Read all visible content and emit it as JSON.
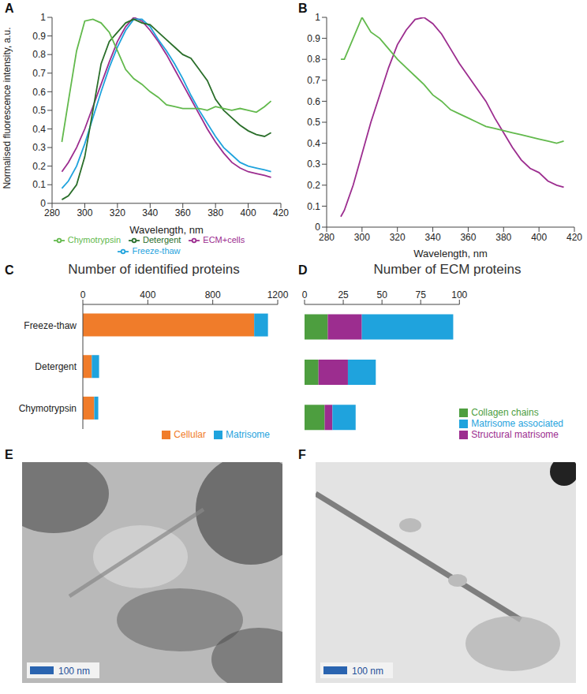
{
  "chart_data": [
    {
      "panel": "A",
      "type": "line",
      "x_label": "Wavelength, nm",
      "y_label": "Normalised fluorescence intensity, a.u.",
      "x": [
        286,
        290,
        295,
        300,
        305,
        310,
        315,
        320,
        325,
        330,
        335,
        340,
        345,
        350,
        355,
        360,
        365,
        370,
        375,
        380,
        385,
        390,
        395,
        400,
        405,
        410,
        414
      ],
      "series": [
        {
          "name": "ECM+cells",
          "color": "#9c2d8f",
          "values": [
            0.17,
            0.22,
            0.3,
            0.4,
            0.52,
            0.64,
            0.76,
            0.87,
            0.95,
            1.0,
            0.98,
            0.93,
            0.87,
            0.8,
            0.72,
            0.64,
            0.56,
            0.48,
            0.4,
            0.33,
            0.27,
            0.22,
            0.19,
            0.17,
            0.16,
            0.15,
            0.14
          ]
        },
        {
          "name": "Freeze-thaw",
          "color": "#1fa3dd",
          "values": [
            0.08,
            0.12,
            0.2,
            0.32,
            0.46,
            0.6,
            0.73,
            0.84,
            0.93,
            0.99,
            0.99,
            0.95,
            0.88,
            0.82,
            0.75,
            0.67,
            0.58,
            0.5,
            0.43,
            0.36,
            0.3,
            0.26,
            0.22,
            0.2,
            0.19,
            0.18,
            0.17
          ]
        },
        {
          "name": "Detergent",
          "color": "#2a6e2a",
          "values": [
            0.02,
            0.04,
            0.1,
            0.25,
            0.5,
            0.75,
            0.87,
            0.92,
            0.97,
            0.99,
            0.97,
            0.96,
            0.92,
            0.88,
            0.84,
            0.8,
            0.78,
            0.72,
            0.66,
            0.56,
            0.5,
            0.46,
            0.42,
            0.39,
            0.37,
            0.36,
            0.38
          ]
        },
        {
          "name": "Chymotrypsin",
          "color": "#62b94c",
          "values": [
            0.33,
            0.55,
            0.82,
            0.98,
            0.99,
            0.97,
            0.92,
            0.82,
            0.72,
            0.67,
            0.64,
            0.6,
            0.57,
            0.53,
            0.52,
            0.51,
            0.51,
            0.51,
            0.5,
            0.52,
            0.51,
            0.5,
            0.51,
            0.5,
            0.49,
            0.52,
            0.55
          ]
        }
      ],
      "xlim": [
        280,
        420
      ],
      "xticks": [
        280,
        300,
        320,
        340,
        360,
        380,
        400,
        420
      ],
      "ylim": [
        0,
        1
      ],
      "yticks": [
        0,
        0.1,
        0.2,
        0.3,
        0.4,
        0.5,
        0.6,
        0.7,
        0.8,
        0.9,
        1
      ],
      "legend": "bottom"
    },
    {
      "panel": "B",
      "type": "line",
      "x_label": "Wavelength, nm",
      "x": [
        288,
        290,
        295,
        300,
        305,
        310,
        315,
        320,
        325,
        330,
        335,
        340,
        345,
        350,
        355,
        360,
        365,
        370,
        375,
        380,
        385,
        390,
        395,
        400,
        405,
        410,
        414
      ],
      "series": [
        {
          "name": "ECM+cells",
          "color": "#9c2d8f",
          "values": [
            0.05,
            0.08,
            0.2,
            0.35,
            0.5,
            0.63,
            0.76,
            0.87,
            0.94,
            0.99,
            1.0,
            0.97,
            0.92,
            0.85,
            0.78,
            0.72,
            0.66,
            0.6,
            0.52,
            0.45,
            0.38,
            0.32,
            0.28,
            0.26,
            0.22,
            0.2,
            0.19
          ]
        },
        {
          "name": "Chymotrypsin",
          "color": "#62b94c",
          "values": [
            0.8,
            0.8,
            0.9,
            1.0,
            0.93,
            0.9,
            0.85,
            0.8,
            0.76,
            0.72,
            0.68,
            0.63,
            0.6,
            0.56,
            0.54,
            0.52,
            0.5,
            0.48,
            0.47,
            0.46,
            0.45,
            0.44,
            0.43,
            0.42,
            0.41,
            0.4,
            0.41
          ]
        }
      ],
      "xlim": [
        280,
        420
      ],
      "xticks": [
        280,
        300,
        320,
        340,
        360,
        380,
        400,
        420
      ],
      "ylim": [
        0,
        1
      ],
      "yticks": [
        0,
        0.1,
        0.2,
        0.3,
        0.4,
        0.5,
        0.6,
        0.7,
        0.8,
        0.9,
        1
      ]
    },
    {
      "panel": "C",
      "type": "bar",
      "title": "Number of identified proteins",
      "orientation": "horizontal",
      "stacked": true,
      "categories": [
        "Freeze-thaw",
        "Detergent",
        "Chymotrypsin"
      ],
      "series": [
        {
          "name": "Cellular",
          "color": "#f07c2a",
          "values": [
            1055,
            55,
            70
          ]
        },
        {
          "name": "Matrisome",
          "color": "#1fa3dd",
          "values": [
            85,
            45,
            25
          ]
        }
      ],
      "xlim": [
        0,
        1200
      ],
      "xticks": [
        0,
        400,
        800,
        1200
      ],
      "legend": "bottom right"
    },
    {
      "panel": "D",
      "type": "bar",
      "title": "Number of ECM proteins",
      "orientation": "horizontal",
      "stacked": true,
      "tick_labels": "x",
      "categories": [
        "Freeze-thaw",
        "Detergent",
        "Chymotrypsin"
      ],
      "series": [
        {
          "name": "Collagen chains",
          "color": "#4d9e3f",
          "values": [
            15,
            9,
            13
          ]
        },
        {
          "name": "Structural matrisome",
          "color": "#9c2d8f",
          "values": [
            22,
            19,
            5
          ]
        },
        {
          "name": "Matrisome associated",
          "color": "#1fa3dd",
          "values": [
            59,
            18,
            15
          ]
        }
      ],
      "xlim": [
        0,
        100
      ],
      "xticks": [
        0,
        25,
        50,
        75,
        100
      ],
      "legend": "bottom right"
    }
  ],
  "images": [
    {
      "panel": "E",
      "scale_bar": "100 nm"
    },
    {
      "panel": "F",
      "scale_bar": "100 nm"
    }
  ]
}
